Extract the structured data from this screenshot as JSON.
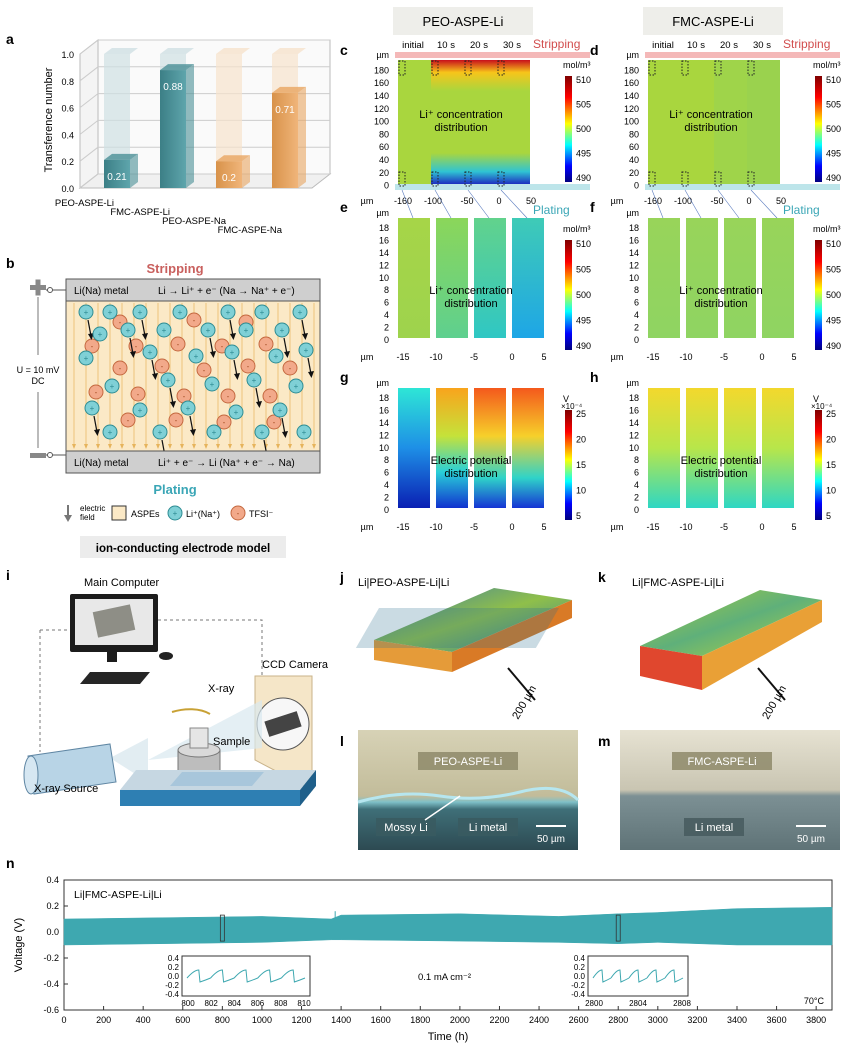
{
  "panels": {
    "a": "a",
    "b": "b",
    "c": "c",
    "d": "d",
    "e": "e",
    "f": "f",
    "g": "g",
    "h": "h",
    "i": "i",
    "j": "j",
    "k": "k",
    "l": "l",
    "m": "m",
    "n": "n"
  },
  "headers": {
    "left": "PEO-ASPE-Li",
    "right": "FMC-ASPE-Li"
  },
  "time_labels": [
    "initial",
    "10 s",
    "20 s",
    "30 s"
  ],
  "stripping": "Stripping",
  "plating": "Plating",
  "units": {
    "um": "µm",
    "molm3": "mol/m³",
    "V": "V",
    "exp": "×10⁻⁴"
  },
  "li_conc_label": [
    "Li⁺ concentration",
    "distribution"
  ],
  "potential_label": [
    "Electric potential",
    "distribution"
  ],
  "cd_y_ticks": [
    "180",
    "160",
    "140",
    "120",
    "100",
    "80",
    "60",
    "40",
    "20",
    "0"
  ],
  "cd_x_ticks": [
    "-160",
    "-100",
    "-50",
    "0",
    "50"
  ],
  "efgh_y_ticks": [
    "18",
    "16",
    "14",
    "12",
    "10",
    "8",
    "6",
    "4",
    "2",
    "0"
  ],
  "efgh_x_ticks": [
    "-15",
    "-10",
    "-5",
    "0",
    "5"
  ],
  "conc_colorbar_ticks": [
    "510",
    "505",
    "500",
    "495",
    "490"
  ],
  "pot_colorbar_ticks": [
    "25",
    "20",
    "15",
    "10",
    "5"
  ],
  "chart_data": [
    {
      "type": "bar",
      "ylabel": "Transference number",
      "categories": [
        "PEO-ASPE-Li",
        "FMC-ASPE-Li",
        "PEO-ASPE-Na",
        "FMC-ASPE-Na"
      ],
      "values": [
        0.21,
        0.88,
        0.2,
        0.71
      ],
      "value_labels": [
        "0.21",
        "0.88",
        "0.2",
        "0.71"
      ],
      "ylim": [
        0,
        1.0
      ],
      "yticks": [
        "0.0",
        "0.2",
        "0.4",
        "0.6",
        "0.8",
        "1.0"
      ],
      "colors": [
        "#4a8f96",
        "#4a8f96",
        "#e8a560",
        "#e8a560"
      ]
    },
    {
      "type": "line",
      "title": "Li|FMC-ASPE-Li|Li",
      "xlabel": "Time (h)",
      "ylabel": "Voltage (V)",
      "xlim": [
        0,
        3880
      ],
      "ylim": [
        -0.6,
        0.4
      ],
      "xticks": [
        "0",
        "200",
        "400",
        "600",
        "800",
        "1000",
        "1200",
        "1400",
        "1600",
        "1800",
        "2000",
        "2200",
        "2400",
        "2600",
        "2800",
        "3000",
        "3200",
        "3400",
        "3600",
        "3800"
      ],
      "yticks": [
        "0.4",
        "0.2",
        "0.0",
        "-0.2",
        "-0.4",
        "-0.6"
      ],
      "envelope_x": [
        0,
        500,
        1000,
        1350,
        1400,
        2000,
        2500,
        2800,
        3000,
        3400,
        3880
      ],
      "envelope_upper": [
        0.1,
        0.11,
        0.12,
        0.1,
        0.13,
        0.14,
        0.12,
        0.14,
        0.15,
        0.18,
        0.19
      ],
      "envelope_lower": [
        -0.1,
        -0.09,
        -0.08,
        -0.06,
        -0.06,
        -0.07,
        -0.08,
        -0.09,
        -0.08,
        -0.1,
        -0.1
      ],
      "annotation_current": "0.1 mA cm⁻²",
      "annotation_temp": "70°C",
      "insets": [
        {
          "xticks": [
            "800",
            "802",
            "804",
            "806",
            "808",
            "810"
          ],
          "yticks": [
            "0.4",
            "0.2",
            "0.0",
            "-0.2",
            "-0.4"
          ]
        },
        {
          "xticks": [
            "2800",
            "2804",
            "2808"
          ],
          "yticks": [
            "0.4",
            "0.2",
            "0.0",
            "-0.2",
            "-0.4"
          ]
        }
      ],
      "color": "#3ea8b0"
    }
  ],
  "panel_b": {
    "top_label": "Stripping",
    "bottom_label": "Plating",
    "top_metal": "Li(Na) metal",
    "top_reaction": "Li → Li⁺ + e⁻ (Na → Na⁺ + e⁻)",
    "bottom_metal": "Li(Na) metal",
    "bottom_reaction": "Li⁺ + e⁻ → Li (Na⁺ + e⁻ → Na)",
    "voltage": [
      "U = 10 mV",
      "DC"
    ],
    "legend": [
      "electric",
      "field",
      "ASPEs",
      "Li⁺(Na⁺)",
      "TFSI⁻"
    ],
    "title": "ion-conducting electrode model"
  },
  "panel_i": {
    "computer": "Main Computer",
    "camera": "CCD Camera",
    "xray": "X-ray",
    "sample": "Sample",
    "source": "X-ray Source"
  },
  "panel_j": {
    "title": "Li|PEO-ASPE-Li|Li",
    "scale": "200 µm"
  },
  "panel_k": {
    "title": "Li|FMC-ASPE-Li|Li",
    "scale": "200 µm"
  },
  "panel_l": {
    "top": "PEO-ASPE-Li",
    "mossy": "Mossy Li",
    "metal": "Li metal",
    "scale": "50 µm"
  },
  "panel_m": {
    "top": "FMC-ASPE-Li",
    "metal": "Li metal",
    "scale": "50 µm"
  }
}
